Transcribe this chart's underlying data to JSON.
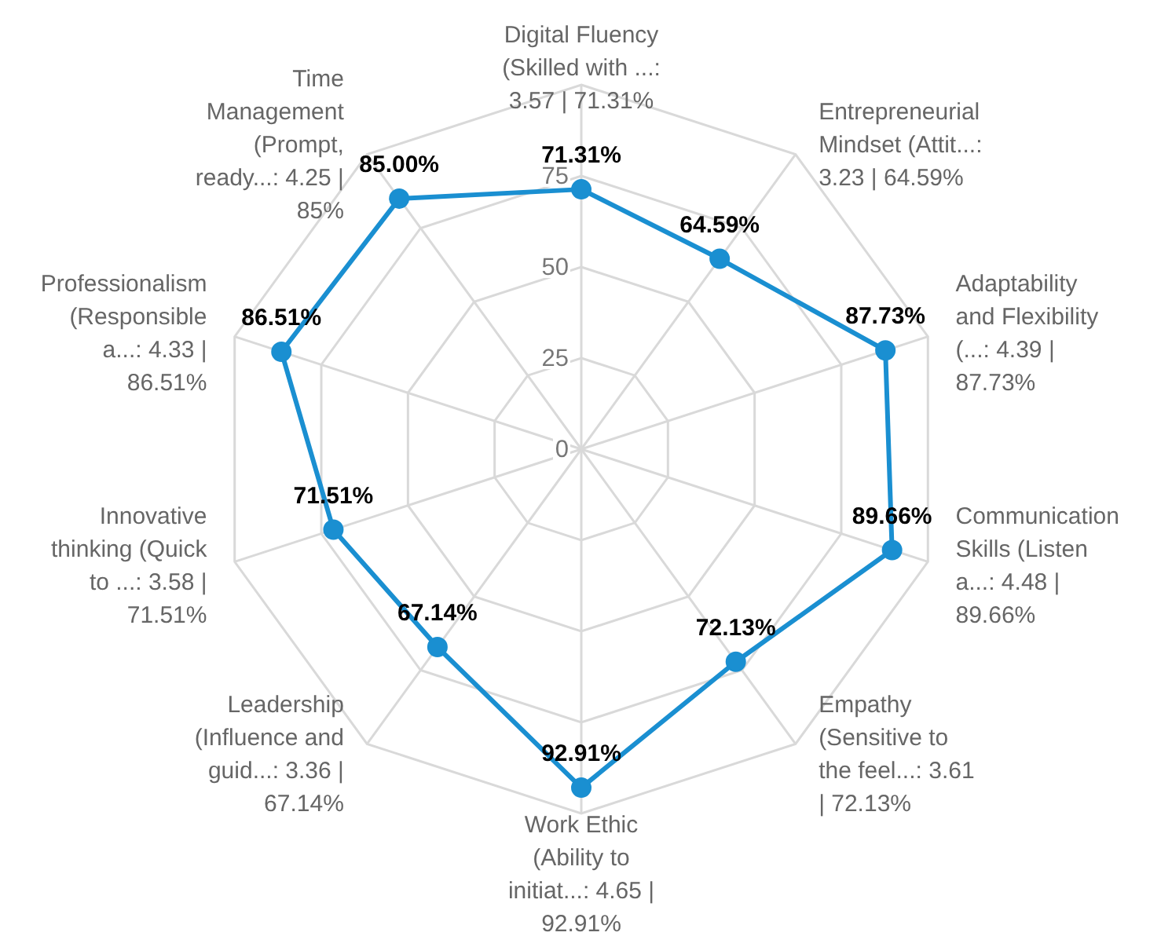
{
  "chart_data": {
    "type": "radar",
    "categories": [
      "Digital Fluency (Skilled with ...: 3.57 | 71.31%",
      "Entrepreneurial Mindset (Attit...: 3.23 | 64.59%",
      "Adaptability and Flexibility (...: 4.39 | 87.73%",
      "Communication Skills (Listen a...: 4.48 | 89.66%",
      "Empathy (Sensitive to the feel...: 3.61 | 72.13%",
      "Work Ethic (Ability to initiat...: 4.65 | 92.91%",
      "Leadership (Influence and guid...: 3.36 | 67.14%",
      "Innovative thinking (Quick to ...: 3.58 | 71.51%",
      "Professionalism (Responsible a...: 4.33 | 86.51%",
      "Time Management (Prompt, ready...: 4.25 | 85%"
    ],
    "series": [
      {
        "color": "#1a8fd1",
        "values": [
          71.31,
          64.59,
          87.73,
          89.66,
          72.13,
          92.91,
          67.14,
          71.51,
          86.51,
          85.0
        ],
        "value_labels": [
          "71.31%",
          "64.59%",
          "87.73%",
          "89.66%",
          "72.13%",
          "92.91%",
          "67.14%",
          "71.51%",
          "86.51%",
          "85.00%"
        ]
      }
    ],
    "ylim": [
      0,
      100
    ],
    "yticks": [
      0,
      25,
      50,
      75
    ],
    "grid": true,
    "marker": "circle"
  }
}
